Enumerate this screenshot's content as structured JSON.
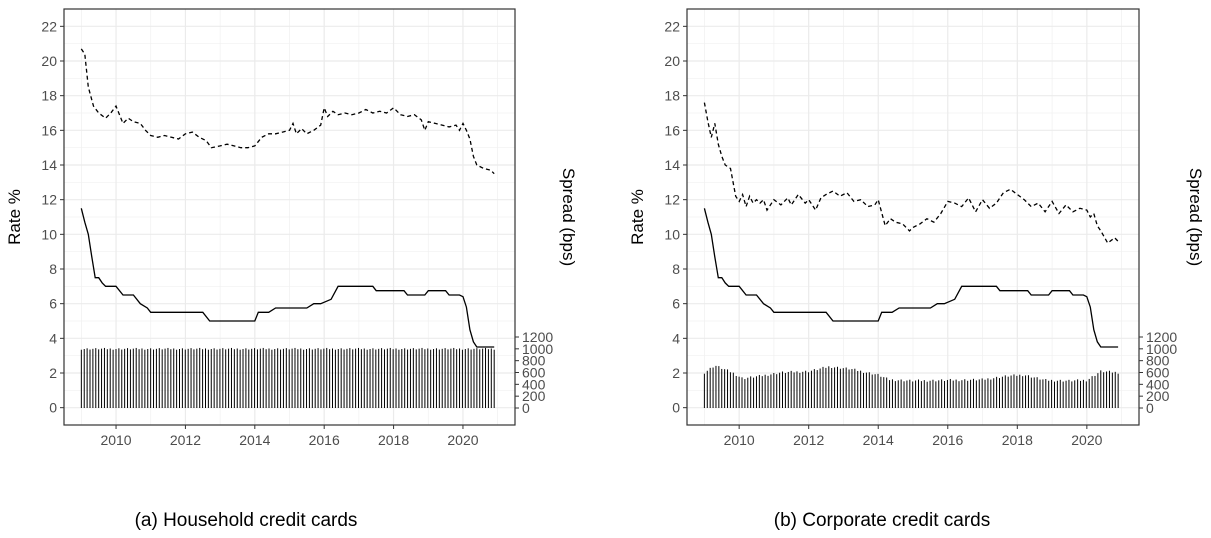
{
  "chart_data": [
    {
      "type": "line",
      "caption": "(a) Household credit cards",
      "ylabel": "Rate %",
      "ylabel_right": "Spread (bps)",
      "xlim": [
        2008.5,
        2021.5
      ],
      "ylim": [
        -1,
        23
      ],
      "y_ticks": [
        "0",
        "2",
        "4",
        "6",
        "8",
        "10",
        "12",
        "14",
        "16",
        "18",
        "20",
        "22"
      ],
      "x_ticks": [
        "2010",
        "2012",
        "2014",
        "2016",
        "2018",
        "2020"
      ],
      "y2_ticks": [
        "0",
        "200",
        "400",
        "600",
        "800",
        "1000",
        "1200"
      ],
      "y2_range": [
        0,
        1200
      ],
      "grid": true,
      "series": [
        {
          "style": "dashed",
          "x": [
            2009.0,
            2009.1,
            2009.2,
            2009.35,
            2009.5,
            2009.7,
            2009.85,
            2010.0,
            2010.2,
            2010.35,
            2010.5,
            2010.7,
            2010.85,
            2011.0,
            2011.2,
            2011.4,
            2011.6,
            2011.8,
            2012.0,
            2012.2,
            2012.4,
            2012.6,
            2012.75,
            2013.0,
            2013.2,
            2013.4,
            2013.6,
            2013.8,
            2014.0,
            2014.2,
            2014.4,
            2014.6,
            2014.8,
            2015.0,
            2015.1,
            2015.2,
            2015.35,
            2015.5,
            2015.7,
            2015.9,
            2016.0,
            2016.1,
            2016.25,
            2016.4,
            2016.6,
            2016.8,
            2017.0,
            2017.2,
            2017.4,
            2017.6,
            2017.8,
            2018.0,
            2018.2,
            2018.4,
            2018.6,
            2018.8,
            2018.9,
            2019.0,
            2019.2,
            2019.4,
            2019.6,
            2019.8,
            2019.9,
            2020.0,
            2020.1,
            2020.2,
            2020.3,
            2020.4,
            2020.6,
            2020.8,
            2020.9
          ],
          "y": [
            20.7,
            20.4,
            18.5,
            17.4,
            17.0,
            16.7,
            17.0,
            17.4,
            16.4,
            16.7,
            16.5,
            16.4,
            16.0,
            15.7,
            15.6,
            15.7,
            15.6,
            15.5,
            15.8,
            15.9,
            15.6,
            15.4,
            15.0,
            15.1,
            15.2,
            15.1,
            15.0,
            15.0,
            15.1,
            15.6,
            15.8,
            15.8,
            15.9,
            16.0,
            16.4,
            15.8,
            16.1,
            15.8,
            16.0,
            16.3,
            17.3,
            16.8,
            17.1,
            16.9,
            17.0,
            16.9,
            17.0,
            17.2,
            17.0,
            17.1,
            17.0,
            17.3,
            16.9,
            16.8,
            16.9,
            16.6,
            16.0,
            16.5,
            16.4,
            16.3,
            16.2,
            16.3,
            16.0,
            16.4,
            16.0,
            15.5,
            14.5,
            14.0,
            13.8,
            13.7,
            13.5
          ]
        },
        {
          "style": "solid",
          "x": [
            2009.0,
            2009.1,
            2009.2,
            2009.3,
            2009.4,
            2009.5,
            2009.6,
            2009.7,
            2010.0,
            2010.2,
            2010.5,
            2010.7,
            2010.9,
            2011.0,
            2012.5,
            2012.7,
            2014.0,
            2014.1,
            2014.4,
            2014.6,
            2015.5,
            2015.7,
            2015.9,
            2016.2,
            2016.4,
            2017.4,
            2017.5,
            2018.3,
            2018.4,
            2018.9,
            2019.0,
            2019.5,
            2019.6,
            2019.9,
            2020.0,
            2020.1,
            2020.2,
            2020.3,
            2020.4,
            2020.6,
            2020.9
          ],
          "y": [
            11.5,
            10.7,
            10.0,
            8.7,
            7.5,
            7.5,
            7.2,
            7.0,
            7.0,
            6.5,
            6.5,
            6.0,
            5.75,
            5.5,
            5.5,
            5.0,
            5.0,
            5.5,
            5.5,
            5.75,
            5.75,
            6.0,
            6.0,
            6.25,
            7.0,
            7.0,
            6.75,
            6.75,
            6.5,
            6.5,
            6.75,
            6.75,
            6.5,
            6.5,
            6.4,
            5.8,
            4.5,
            3.8,
            3.5,
            3.5,
            3.5
          ]
        }
      ],
      "bars": {
        "x_start": 2009.0,
        "x_end": 2020.9,
        "count": 144,
        "base": 1000,
        "amplitude": 30,
        "unit": "bps"
      }
    },
    {
      "type": "line",
      "caption": "(b) Corporate credit cards",
      "ylabel": "Rate %",
      "ylabel_right": "Spread (bps)",
      "xlim": [
        2008.5,
        2021.5
      ],
      "ylim": [
        -1,
        23
      ],
      "y_ticks": [
        "0",
        "2",
        "4",
        "6",
        "8",
        "10",
        "12",
        "14",
        "16",
        "18",
        "20",
        "22"
      ],
      "x_ticks": [
        "2010",
        "2012",
        "2014",
        "2016",
        "2018",
        "2020"
      ],
      "y2_ticks": [
        "0",
        "200",
        "400",
        "600",
        "800",
        "1000",
        "1200"
      ],
      "y2_range": [
        0,
        1200
      ],
      "grid": true,
      "series": [
        {
          "style": "dashed",
          "x": [
            2009.0,
            2009.1,
            2009.2,
            2009.3,
            2009.4,
            2009.5,
            2009.6,
            2009.75,
            2009.9,
            2010.0,
            2010.1,
            2010.2,
            2010.3,
            2010.4,
            2010.5,
            2010.6,
            2010.7,
            2010.8,
            2011.0,
            2011.2,
            2011.4,
            2011.5,
            2011.7,
            2011.9,
            2012.0,
            2012.2,
            2012.35,
            2012.5,
            2012.7,
            2012.9,
            2013.1,
            2013.3,
            2013.5,
            2013.7,
            2013.9,
            2014.0,
            2014.2,
            2014.35,
            2014.5,
            2014.7,
            2014.9,
            2015.0,
            2015.2,
            2015.4,
            2015.6,
            2015.8,
            2016.0,
            2016.2,
            2016.4,
            2016.6,
            2016.8,
            2017.0,
            2017.2,
            2017.4,
            2017.6,
            2017.8,
            2018.0,
            2018.2,
            2018.4,
            2018.6,
            2018.8,
            2019.0,
            2019.2,
            2019.4,
            2019.6,
            2019.8,
            2020.0,
            2020.1,
            2020.2,
            2020.3,
            2020.4,
            2020.6,
            2020.8,
            2020.9
          ],
          "y": [
            17.6,
            16.5,
            15.6,
            16.4,
            15.2,
            14.5,
            14.0,
            13.8,
            12.2,
            11.9,
            12.3,
            11.6,
            12.2,
            11.8,
            12.0,
            11.8,
            12.0,
            11.4,
            12.0,
            11.7,
            12.1,
            11.7,
            12.3,
            11.8,
            12.0,
            11.4,
            12.1,
            12.3,
            12.5,
            12.2,
            12.4,
            11.9,
            12.0,
            11.6,
            11.7,
            12.0,
            10.5,
            10.9,
            10.7,
            10.6,
            10.2,
            10.4,
            10.6,
            10.9,
            10.7,
            11.2,
            11.9,
            11.8,
            11.6,
            12.1,
            11.3,
            12.0,
            11.5,
            11.8,
            12.4,
            12.6,
            12.3,
            12.0,
            11.6,
            11.8,
            11.3,
            11.9,
            11.2,
            11.7,
            11.3,
            11.5,
            11.4,
            11.0,
            11.2,
            10.5,
            10.2,
            9.5,
            9.8,
            9.6
          ]
        },
        {
          "style": "solid",
          "x": [
            2009.0,
            2009.1,
            2009.2,
            2009.3,
            2009.4,
            2009.5,
            2009.6,
            2009.7,
            2010.0,
            2010.2,
            2010.5,
            2010.7,
            2010.9,
            2011.0,
            2012.5,
            2012.7,
            2014.0,
            2014.1,
            2014.4,
            2014.6,
            2015.5,
            2015.7,
            2015.9,
            2016.2,
            2016.4,
            2017.4,
            2017.5,
            2018.3,
            2018.4,
            2018.9,
            2019.0,
            2019.5,
            2019.6,
            2019.9,
            2020.0,
            2020.1,
            2020.2,
            2020.3,
            2020.4,
            2020.6,
            2020.9
          ],
          "y": [
            11.5,
            10.7,
            10.0,
            8.7,
            7.5,
            7.5,
            7.2,
            7.0,
            7.0,
            6.5,
            6.5,
            6.0,
            5.75,
            5.5,
            5.5,
            5.0,
            5.0,
            5.5,
            5.5,
            5.75,
            5.75,
            6.0,
            6.0,
            6.25,
            7.0,
            7.0,
            6.75,
            6.75,
            6.5,
            6.5,
            6.75,
            6.75,
            6.5,
            6.5,
            6.4,
            5.8,
            4.5,
            3.8,
            3.5,
            3.5,
            3.5
          ]
        }
      ],
      "bars": {
        "x_start": 2009.0,
        "x_end": 2020.9,
        "count": 144,
        "profile": [
          [
            2009.0,
            600
          ],
          [
            2009.3,
            720
          ],
          [
            2009.8,
            600
          ],
          [
            2010.1,
            500
          ],
          [
            2010.6,
            540
          ],
          [
            2011.2,
            600
          ],
          [
            2012.0,
            620
          ],
          [
            2012.6,
            700
          ],
          [
            2013.2,
            660
          ],
          [
            2014.0,
            560
          ],
          [
            2014.3,
            480
          ],
          [
            2015.0,
            460
          ],
          [
            2016.0,
            470
          ],
          [
            2017.0,
            480
          ],
          [
            2017.7,
            540
          ],
          [
            2018.2,
            560
          ],
          [
            2018.8,
            470
          ],
          [
            2019.5,
            460
          ],
          [
            2020.0,
            470
          ],
          [
            2020.4,
            620
          ],
          [
            2020.9,
            600
          ]
        ],
        "unit": "bps"
      }
    }
  ]
}
